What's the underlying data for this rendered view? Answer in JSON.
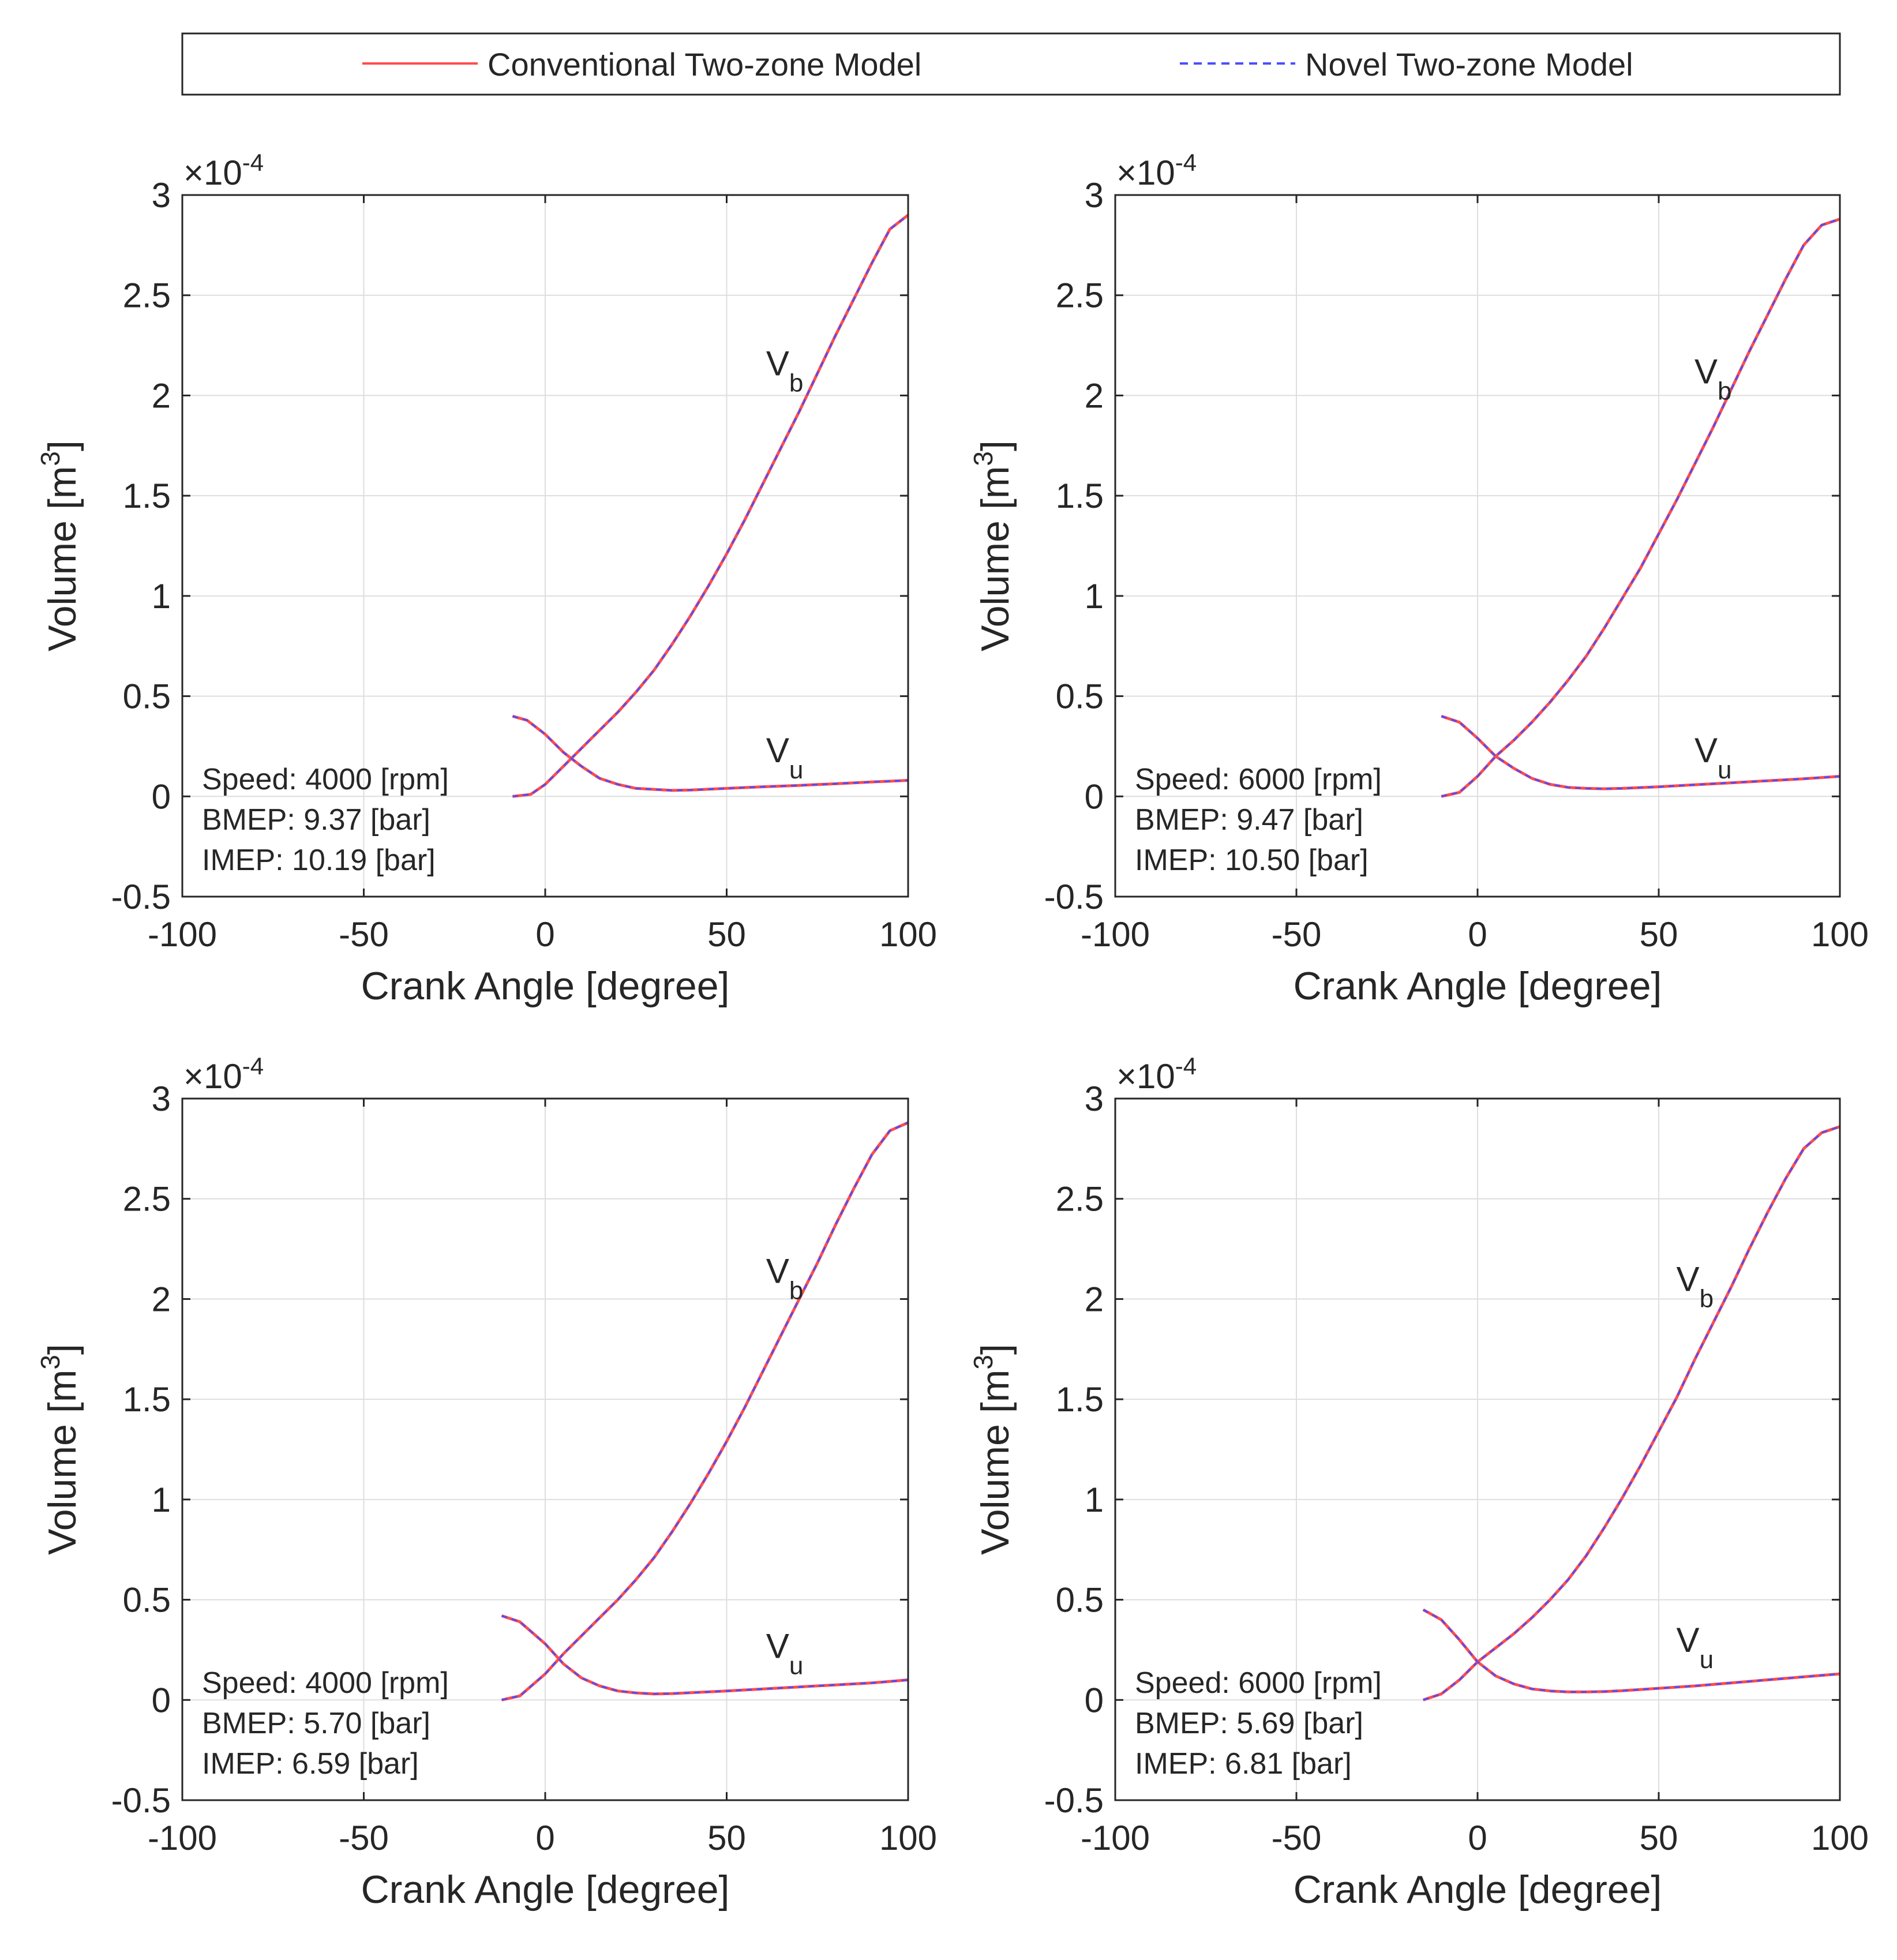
{
  "legend": {
    "position": "top",
    "entries": [
      {
        "label": "Conventional Two-zone Model",
        "color": "#ff4d4d",
        "style": "solid"
      },
      {
        "label": "Novel Two-zone Model",
        "color": "#4d4dff",
        "style": "dashed"
      }
    ]
  },
  "colors": {
    "conventional": "#ff4d4d",
    "novel": "#4d4dff",
    "grid": "#dedede",
    "axis": "#262626"
  },
  "chart_data": [
    {
      "type": "line",
      "panel": "top-left",
      "xlabel": "Crank Angle [degree]",
      "ylabel": "Volume [m³]",
      "ylabel_main": "Volume [m",
      "ylabel_sup": "3",
      "ylabel_end": "]",
      "xlim": [
        -100,
        100
      ],
      "ylim": [
        -0.5,
        3
      ],
      "xticks": [
        "-100",
        "-50",
        "0",
        "50",
        "100"
      ],
      "yticks": [
        "-0.5",
        "0",
        "0.5",
        "1",
        "1.5",
        "2",
        "2.5",
        "3"
      ],
      "exponent_prefix": "×10",
      "exponent_sup": "-4",
      "grid": true,
      "annotations": [
        "Speed: 4000 [rpm]",
        "BMEP: 9.37 [bar]",
        "IMEP:  10.19 [bar]"
      ],
      "vb_label": {
        "main": "V",
        "sub": "b",
        "x": 66,
        "y": 2.1
      },
      "vu_label": {
        "main": "V",
        "sub": "u",
        "x": 66,
        "y": 0.17
      },
      "series": [
        {
          "name": "Vb",
          "x": [
            -9,
            -4,
            0,
            5,
            10,
            15,
            20,
            25,
            30,
            35,
            40,
            45,
            50,
            55,
            60,
            65,
            70,
            75,
            80,
            85,
            90,
            95,
            100
          ],
          "y": [
            0.0,
            0.01,
            0.06,
            0.15,
            0.24,
            0.33,
            0.42,
            0.52,
            0.63,
            0.76,
            0.9,
            1.05,
            1.21,
            1.38,
            1.56,
            1.74,
            1.92,
            2.11,
            2.3,
            2.48,
            2.66,
            2.83,
            2.9
          ]
        },
        {
          "name": "Vu",
          "x": [
            -9,
            -5,
            0,
            5,
            10,
            15,
            20,
            25,
            30,
            35,
            40,
            50,
            60,
            70,
            80,
            90,
            100
          ],
          "y": [
            0.4,
            0.38,
            0.31,
            0.22,
            0.15,
            0.09,
            0.06,
            0.04,
            0.035,
            0.03,
            0.032,
            0.04,
            0.048,
            0.055,
            0.063,
            0.072,
            0.08
          ]
        }
      ]
    },
    {
      "type": "line",
      "panel": "top-right",
      "xlabel": "Crank Angle [degree]",
      "ylabel": "Volume [m³]",
      "ylabel_main": "Volume [m",
      "ylabel_sup": "3",
      "ylabel_end": "]",
      "xlim": [
        -100,
        100
      ],
      "ylim": [
        -0.5,
        3
      ],
      "xticks": [
        "-100",
        "-50",
        "0",
        "50",
        "100"
      ],
      "yticks": [
        "-0.5",
        "0",
        "0.5",
        "1",
        "1.5",
        "2",
        "2.5",
        "3"
      ],
      "exponent_prefix": "×10",
      "exponent_sup": "-4",
      "grid": true,
      "annotations": [
        "Speed: 6000 [rpm]",
        "BMEP: 9.47 [bar]",
        "IMEP:  10.50 [bar]"
      ],
      "vb_label": {
        "main": "V",
        "sub": "b",
        "x": 65,
        "y": 2.06
      },
      "vu_label": {
        "main": "V",
        "sub": "u",
        "x": 65,
        "y": 0.17
      },
      "series": [
        {
          "name": "Vb",
          "x": [
            -10,
            -5,
            0,
            5,
            10,
            15,
            20,
            25,
            30,
            35,
            40,
            45,
            50,
            55,
            60,
            65,
            70,
            75,
            80,
            85,
            90,
            95,
            100
          ],
          "y": [
            0.0,
            0.02,
            0.1,
            0.2,
            0.28,
            0.37,
            0.47,
            0.58,
            0.7,
            0.84,
            0.99,
            1.14,
            1.31,
            1.48,
            1.66,
            1.84,
            2.03,
            2.22,
            2.4,
            2.58,
            2.75,
            2.85,
            2.88
          ]
        },
        {
          "name": "Vu",
          "x": [
            -10,
            -5,
            0,
            5,
            10,
            15,
            20,
            25,
            30,
            35,
            40,
            50,
            60,
            70,
            80,
            90,
            100
          ],
          "y": [
            0.4,
            0.37,
            0.29,
            0.2,
            0.14,
            0.09,
            0.06,
            0.045,
            0.04,
            0.038,
            0.04,
            0.048,
            0.058,
            0.068,
            0.078,
            0.088,
            0.1
          ]
        }
      ]
    },
    {
      "type": "line",
      "panel": "bottom-left",
      "xlabel": "Crank Angle [degree]",
      "ylabel": "Volume [m³]",
      "ylabel_main": "Volume [m",
      "ylabel_sup": "3",
      "ylabel_end": "]",
      "xlim": [
        -100,
        100
      ],
      "ylim": [
        -0.5,
        3
      ],
      "xticks": [
        "-100",
        "-50",
        "0",
        "50",
        "100"
      ],
      "yticks": [
        "-0.5",
        "0",
        "0.5",
        "1",
        "1.5",
        "2",
        "2.5",
        "3"
      ],
      "exponent_prefix": "×10",
      "exponent_sup": "-4",
      "grid": true,
      "annotations": [
        "Speed: 4000 [rpm]",
        "BMEP: 5.70 [bar]",
        "IMEP:  6.59 [bar]"
      ],
      "vb_label": {
        "main": "V",
        "sub": "b",
        "x": 66,
        "y": 2.08
      },
      "vu_label": {
        "main": "V",
        "sub": "u",
        "x": 66,
        "y": 0.21
      },
      "series": [
        {
          "name": "Vb",
          "x": [
            -12,
            -7,
            0,
            5,
            10,
            15,
            20,
            25,
            30,
            35,
            40,
            45,
            50,
            55,
            60,
            65,
            70,
            75,
            80,
            85,
            90,
            95,
            100
          ],
          "y": [
            0.0,
            0.02,
            0.13,
            0.23,
            0.32,
            0.41,
            0.5,
            0.6,
            0.71,
            0.84,
            0.98,
            1.13,
            1.29,
            1.46,
            1.64,
            1.82,
            2.0,
            2.18,
            2.37,
            2.55,
            2.72,
            2.84,
            2.88
          ]
        },
        {
          "name": "Vu",
          "x": [
            -12,
            -7,
            0,
            5,
            10,
            15,
            20,
            25,
            30,
            35,
            40,
            50,
            60,
            70,
            80,
            90,
            100
          ],
          "y": [
            0.42,
            0.39,
            0.28,
            0.18,
            0.11,
            0.07,
            0.045,
            0.035,
            0.03,
            0.032,
            0.036,
            0.045,
            0.055,
            0.065,
            0.075,
            0.085,
            0.1
          ]
        }
      ]
    },
    {
      "type": "line",
      "panel": "bottom-right",
      "xlabel": "Crank Angle [degree]",
      "ylabel": "Volume [m³]",
      "ylabel_main": "Volume [m",
      "ylabel_sup": "3",
      "ylabel_end": "]",
      "xlim": [
        -100,
        100
      ],
      "ylim": [
        -0.5,
        3
      ],
      "xticks": [
        "-100",
        "-50",
        "0",
        "50",
        "100"
      ],
      "yticks": [
        "-0.5",
        "0",
        "0.5",
        "1",
        "1.5",
        "2",
        "2.5",
        "3"
      ],
      "exponent_prefix": "×10",
      "exponent_sup": "-4",
      "grid": true,
      "annotations": [
        "Speed: 6000 [rpm]",
        "BMEP: 5.69 [bar]",
        "IMEP:  6.81 [bar]"
      ],
      "vb_label": {
        "main": "V",
        "sub": "b",
        "x": 60,
        "y": 2.04
      },
      "vu_label": {
        "main": "V",
        "sub": "u",
        "x": 60,
        "y": 0.24
      },
      "series": [
        {
          "name": "Vb",
          "x": [
            -15,
            -10,
            -5,
            0,
            5,
            10,
            15,
            20,
            25,
            30,
            35,
            40,
            45,
            50,
            55,
            60,
            65,
            70,
            75,
            80,
            85,
            90,
            95,
            100
          ],
          "y": [
            0.0,
            0.03,
            0.1,
            0.19,
            0.26,
            0.33,
            0.41,
            0.5,
            0.6,
            0.72,
            0.86,
            1.01,
            1.17,
            1.34,
            1.51,
            1.7,
            1.88,
            2.06,
            2.25,
            2.43,
            2.6,
            2.75,
            2.83,
            2.86
          ]
        },
        {
          "name": "Vu",
          "x": [
            -15,
            -10,
            -5,
            0,
            5,
            10,
            15,
            20,
            25,
            30,
            35,
            40,
            50,
            60,
            70,
            80,
            90,
            100
          ],
          "y": [
            0.45,
            0.4,
            0.3,
            0.19,
            0.12,
            0.08,
            0.055,
            0.045,
            0.04,
            0.04,
            0.042,
            0.046,
            0.058,
            0.07,
            0.085,
            0.1,
            0.115,
            0.13
          ]
        }
      ]
    }
  ]
}
